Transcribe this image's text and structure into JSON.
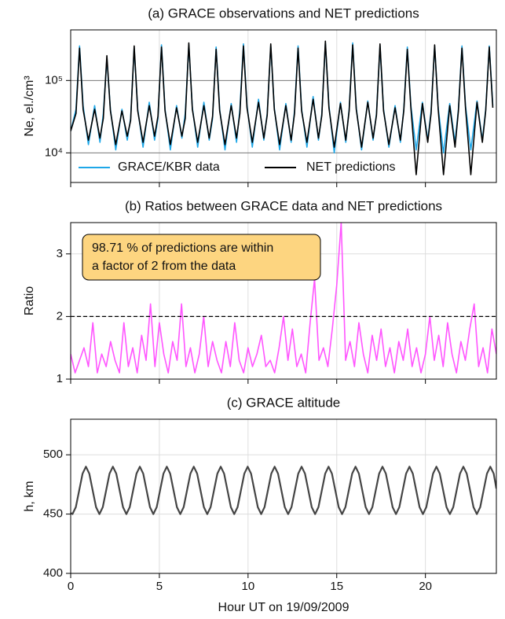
{
  "chart_data": [
    {
      "type": "line",
      "title": "(a) GRACE observations and NET predictions",
      "y_label": "Ne, el./cm³",
      "log_y": true,
      "grid": true,
      "legend": "lower center",
      "xtick_labels": false,
      "xlim": [
        0,
        24
      ],
      "xticks": [
        0,
        5,
        10,
        15,
        20
      ],
      "ylim": [
        3900,
        500000
      ],
      "yticks": [
        {
          "value": 10000,
          "label": "10⁴"
        },
        {
          "value": 100000,
          "label": "10⁵"
        }
      ],
      "x": [
        0,
        0.3,
        0.5,
        0.7,
        1.0,
        1.35,
        1.65,
        1.84,
        2.04,
        2.24,
        2.54,
        2.89,
        3.19,
        3.38,
        3.58,
        3.78,
        4.08,
        4.43,
        4.73,
        4.92,
        5.12,
        5.32,
        5.62,
        5.97,
        6.27,
        6.46,
        6.66,
        6.86,
        7.16,
        7.51,
        7.81,
        8.0,
        8.2,
        8.4,
        8.7,
        9.05,
        9.35,
        9.54,
        9.74,
        9.94,
        10.24,
        10.59,
        10.89,
        11.08,
        11.28,
        11.48,
        11.78,
        12.13,
        12.43,
        12.62,
        12.82,
        13.02,
        13.32,
        13.67,
        13.97,
        14.16,
        14.36,
        14.56,
        14.86,
        15.21,
        15.51,
        15.7,
        15.9,
        16.1,
        16.4,
        16.75,
        17.05,
        17.24,
        17.44,
        17.64,
        17.94,
        18.29,
        18.59,
        18.78,
        18.98,
        19.18,
        19.48,
        19.83,
        20.13,
        20.32,
        20.52,
        20.72,
        21.02,
        21.37,
        21.67,
        21.86,
        22.06,
        22.26,
        22.56,
        22.91,
        23.21,
        23.4,
        23.6,
        23.8
      ],
      "series": [
        {
          "name": "GRACE/KBR data",
          "color": "#1ea7e8",
          "values": [
            20000,
            40000,
            300000,
            45000,
            13000,
            45000,
            14000,
            35000,
            200000,
            40000,
            11000,
            40000,
            15000,
            30000,
            280000,
            40000,
            12000,
            50000,
            15000,
            30000,
            310000,
            40000,
            11000,
            45000,
            16000,
            35000,
            310000,
            42000,
            12000,
            50000,
            15000,
            30000,
            290000,
            40000,
            11000,
            48000,
            14000,
            40000,
            320000,
            45000,
            12000,
            55000,
            15000,
            35000,
            300000,
            42000,
            11000,
            48000,
            14000,
            38000,
            300000,
            40000,
            12000,
            60000,
            15000,
            35000,
            330000,
            45000,
            10000,
            50000,
            14000,
            40000,
            330000,
            42000,
            11000,
            52000,
            15000,
            35000,
            300000,
            40000,
            12000,
            45000,
            14000,
            40000,
            290000,
            45000,
            11000,
            50000,
            15000,
            38000,
            300000,
            42000,
            10000,
            48000,
            14000,
            40000,
            300000,
            45000,
            11000,
            52000,
            15000,
            40000,
            300000,
            45000
          ]
        },
        {
          "name": "NET predictions",
          "color": "#000000",
          "values": [
            20000,
            35000,
            280000,
            40000,
            15000,
            40000,
            16000,
            30000,
            220000,
            38000,
            13000,
            38000,
            17000,
            28000,
            300000,
            38000,
            14000,
            45000,
            17000,
            32000,
            290000,
            38000,
            13000,
            42000,
            17000,
            30000,
            330000,
            40000,
            14000,
            45000,
            16000,
            32000,
            270000,
            38000,
            13000,
            45000,
            16000,
            35000,
            300000,
            42000,
            14000,
            50000,
            16000,
            33000,
            320000,
            40000,
            13000,
            45000,
            15000,
            35000,
            280000,
            38000,
            14000,
            55000,
            16000,
            33000,
            350000,
            42000,
            12000,
            48000,
            15000,
            38000,
            310000,
            40000,
            12000,
            50000,
            16000,
            33000,
            320000,
            38000,
            13000,
            42000,
            15000,
            38000,
            270000,
            42000,
            5000,
            48000,
            14000,
            35000,
            310000,
            40000,
            5000,
            45000,
            12000,
            38000,
            280000,
            42000,
            5000,
            50000,
            14000,
            38000,
            290000,
            42000
          ]
        }
      ]
    },
    {
      "type": "line",
      "title": "(b) Ratios between GRACE data and NET predictions",
      "y_label": "Ratio",
      "grid": true,
      "xtick_labels": false,
      "threshold": 2,
      "annotation": [
        "98.71 % of predictions are within",
        "a factor of 2 from the data"
      ],
      "xlim": [
        0,
        24
      ],
      "xticks": [
        0,
        5,
        10,
        15,
        20
      ],
      "ylim": [
        1,
        3.5
      ],
      "yticks": [
        1,
        2,
        3
      ],
      "x": [
        0,
        0.25,
        0.5,
        0.75,
        1,
        1.25,
        1.5,
        1.75,
        2,
        2.25,
        2.5,
        2.75,
        3,
        3.25,
        3.5,
        3.75,
        4,
        4.25,
        4.5,
        4.75,
        5,
        5.25,
        5.5,
        5.75,
        6,
        6.25,
        6.5,
        6.75,
        7,
        7.25,
        7.5,
        7.75,
        8,
        8.25,
        8.5,
        8.75,
        9,
        9.25,
        9.5,
        9.75,
        10,
        10.25,
        10.5,
        10.75,
        11,
        11.25,
        11.5,
        11.75,
        12,
        12.25,
        12.5,
        12.75,
        13,
        13.25,
        13.5,
        13.75,
        14,
        14.25,
        14.5,
        14.75,
        15,
        15.25,
        15.5,
        15.75,
        16,
        16.25,
        16.5,
        16.75,
        17,
        17.25,
        17.5,
        17.75,
        18,
        18.25,
        18.5,
        18.75,
        19,
        19.25,
        19.5,
        19.75,
        20,
        20.25,
        20.5,
        20.75,
        21,
        21.25,
        21.5,
        21.75,
        22,
        22.25,
        22.5,
        22.75,
        23,
        23.25,
        23.5,
        23.75,
        24
      ],
      "series": [
        {
          "name": "Ratio",
          "color": "#ff55ff",
          "values": [
            1.4,
            1.1,
            1.3,
            1.5,
            1.2,
            1.9,
            1.1,
            1.4,
            1.2,
            1.6,
            1.3,
            1.1,
            1.9,
            1.2,
            1.5,
            1.1,
            1.7,
            1.3,
            2.2,
            1.2,
            1.9,
            1.4,
            1.1,
            1.6,
            1.3,
            2.2,
            1.2,
            1.5,
            1.1,
            1.4,
            2.0,
            1.2,
            1.6,
            1.3,
            1.1,
            1.6,
            1.2,
            1.9,
            1.3,
            1.1,
            1.5,
            1.2,
            1.4,
            1.7,
            1.2,
            1.3,
            1.1,
            1.5,
            2.0,
            1.3,
            1.8,
            1.2,
            1.4,
            1.1,
            1.9,
            2.6,
            1.3,
            1.5,
            1.2,
            1.8,
            2.5,
            3.5,
            1.3,
            1.6,
            1.2,
            1.9,
            1.4,
            1.1,
            1.7,
            1.3,
            1.8,
            1.2,
            1.5,
            1.1,
            1.6,
            1.3,
            1.8,
            1.2,
            1.5,
            1.1,
            1.4,
            2.0,
            1.3,
            1.7,
            1.2,
            1.9,
            1.4,
            1.1,
            1.6,
            1.3,
            1.8,
            2.2,
            1.2,
            1.5,
            1.1,
            1.8,
            1.4
          ]
        }
      ]
    },
    {
      "type": "line",
      "title": "(c) GRACE altitude",
      "y_label": "h, km",
      "x_label": "Hour UT on 19/09/2009",
      "grid": true,
      "xtick_labels": true,
      "xlim": [
        0,
        24
      ],
      "xticks": [
        0,
        5,
        10,
        15,
        20
      ],
      "ylim": [
        400,
        530
      ],
      "yticks": [
        400,
        450,
        500
      ],
      "x": [
        0,
        0.1,
        0.29,
        0.48,
        0.67,
        0.86,
        1.05,
        1.24,
        1.43,
        1.62,
        1.81,
        2.0,
        2.19,
        2.38,
        2.57,
        2.76,
        2.95,
        3.14,
        3.33,
        3.52,
        3.71,
        3.9,
        4.09,
        4.28,
        4.47,
        4.66,
        4.85,
        5.04,
        5.23,
        5.42,
        5.61,
        5.8,
        5.99,
        6.18,
        6.37,
        6.56,
        6.75,
        6.94,
        7.13,
        7.32,
        7.51,
        7.7,
        7.89,
        8.08,
        8.27,
        8.46,
        8.65,
        8.84,
        9.03,
        9.22,
        9.41,
        9.6,
        9.79,
        9.98,
        10.17,
        10.36,
        10.55,
        10.74,
        10.93,
        11.12,
        11.31,
        11.5,
        11.69,
        11.88,
        12.07,
        12.26,
        12.45,
        12.64,
        12.83,
        13.02,
        13.21,
        13.4,
        13.59,
        13.78,
        13.97,
        14.16,
        14.35,
        14.54,
        14.73,
        14.92,
        15.11,
        15.3,
        15.49,
        15.68,
        15.87,
        16.06,
        16.25,
        16.44,
        16.63,
        16.82,
        17.01,
        17.2,
        17.39,
        17.58,
        17.77,
        17.96,
        18.15,
        18.34,
        18.53,
        18.72,
        18.91,
        19.1,
        19.29,
        19.48,
        19.67,
        19.86,
        20.05,
        20.24,
        20.43,
        20.62,
        20.81,
        21.0,
        21.19,
        21.38,
        21.57,
        21.76,
        21.95,
        22.14,
        22.33,
        22.52,
        22.71,
        22.9,
        23.09,
        23.28,
        23.47,
        23.66,
        23.85,
        24
      ],
      "series": [
        {
          "name": "Altitude",
          "color": "#444444",
          "values": [
            451,
            450,
            455.9,
            470,
            484.1,
            490,
            484.1,
            470,
            455.9,
            450,
            455.9,
            470,
            484.1,
            490,
            484.1,
            470,
            455.9,
            450,
            455.9,
            470,
            484.1,
            490,
            484.1,
            470,
            455.9,
            450,
            455.9,
            470,
            484.1,
            490,
            484.1,
            470,
            455.9,
            450,
            455.9,
            470,
            484.1,
            490,
            484.1,
            470,
            455.9,
            450,
            455.9,
            470,
            484.1,
            490,
            484.1,
            470,
            455.9,
            450,
            455.9,
            470,
            484.1,
            490,
            484.1,
            470,
            455.9,
            450,
            455.9,
            470,
            484.1,
            490,
            484.1,
            470,
            455.9,
            450,
            455.9,
            470,
            484.1,
            490,
            484.1,
            470,
            455.9,
            450,
            455.9,
            470,
            484.1,
            490,
            484.1,
            470,
            455.9,
            450,
            455.9,
            470,
            484.1,
            490,
            484.1,
            470,
            455.9,
            450,
            455.9,
            470,
            484.1,
            490,
            484.1,
            470,
            455.9,
            450,
            455.9,
            470,
            484.1,
            490,
            484.1,
            470,
            455.9,
            450,
            455.9,
            470,
            484.1,
            490,
            484.1,
            470,
            455.9,
            450,
            455.9,
            470,
            484.1,
            490,
            484.1,
            470,
            455.9,
            450,
            455.9,
            470,
            484.1,
            490,
            484.1,
            471.5
          ]
        }
      ]
    }
  ]
}
